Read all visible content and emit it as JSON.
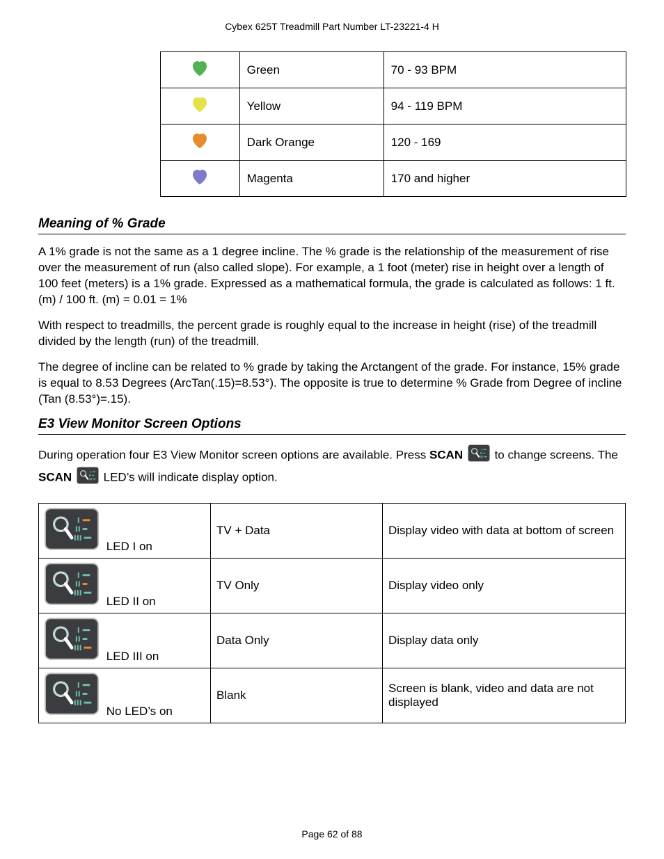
{
  "doc_header": "Cybex 625T Treadmill Part Number LT-23221-4 H",
  "heart_rows": [
    {
      "color": "#52b152",
      "label": "Green",
      "range": "70 - 93 BPM"
    },
    {
      "color": "#e4e24a",
      "label": "Yellow",
      "range": "94 - 119 BPM"
    },
    {
      "color": "#e78b2b",
      "label": "Dark Orange",
      "range": "120 - 169"
    },
    {
      "color": "#7c7cc8",
      "label": "Magenta",
      "range": "170 and higher"
    }
  ],
  "section_grade_title": "Meaning of % Grade",
  "grade_p1": "A 1% grade is not the same as a 1 degree incline. The % grade is the relationship of the measurement of rise over the measurement of run (also called slope). For example, a 1 foot (meter) rise in height over a length of 100 feet (meters) is a 1% grade. Expressed as a mathematical formula, the grade is calculated as follows: 1 ft. (m) / 100 ft. (m) = 0.01 = 1%",
  "grade_p2": "With respect to treadmills, the percent grade is roughly equal to the increase in height (rise) of the treadmill divided by the length (run) of the treadmill.",
  "grade_p3": "The degree of incline can be related to % grade by taking the Arctangent of the grade. For instance, 15% grade is equal to 8.53 Degrees (ArcTan(.15)=8.53°). The opposite is true to determine % Grade from Degree of incline (Tan (8.53°)=.15).",
  "section_e3_title": "E3 View Monitor Screen Options",
  "e3_sentence_pre": "During operation four E3 View Monitor screen options are available. Press ",
  "e3_scan_word": "SCAN",
  "e3_sentence_mid": " to change screens. The ",
  "e3_sentence_post": " LED’s will indicate display option.",
  "scan_rows": [
    {
      "highlights": [
        0
      ],
      "led_label": "LED I on",
      "mode": "TV + Data",
      "desc": "Display video with data at bottom of screen"
    },
    {
      "highlights": [
        1
      ],
      "led_label": "LED II on",
      "mode": "TV Only",
      "desc": "Display video only"
    },
    {
      "highlights": [
        2
      ],
      "led_label": "LED III on",
      "mode": "Data Only",
      "desc": "Display data only"
    },
    {
      "highlights": [],
      "led_label": "No LED’s on",
      "mode": "Blank",
      "desc": "Screen is blank, video and data are not displayed"
    }
  ],
  "scan_icon_colors": {
    "button_bg": "#3a3c3f",
    "button_border": "#b9b9b9",
    "glyph_glow_off": "#6fbfb0",
    "glyph_glow_on": "#f08a2c",
    "bar_off": "#6fbfb0",
    "bar_on": "#f08a2c"
  },
  "footer": "Page 62 of 88"
}
